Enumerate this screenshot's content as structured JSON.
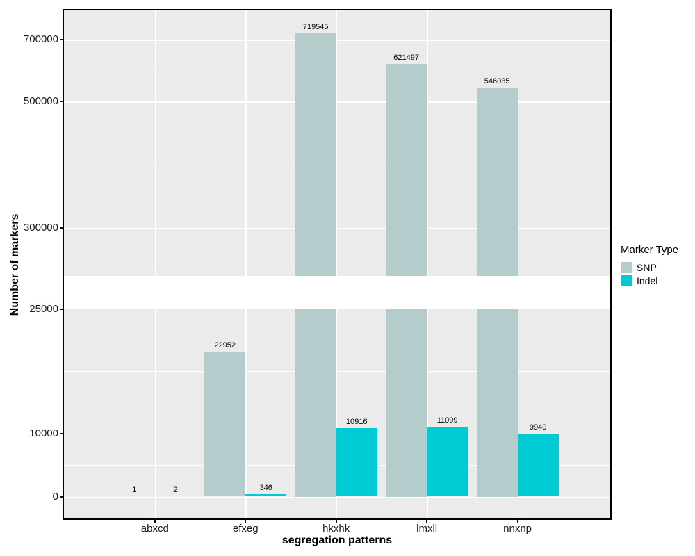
{
  "chart_data": {
    "type": "bar",
    "title": "",
    "xlabel": "segregation patterns",
    "ylabel": "Number of markers",
    "categories": [
      "abxcd",
      "efxeg",
      "hkxhk",
      "lmxll",
      "nnxnp"
    ],
    "series": [
      {
        "name": "SNP",
        "color": "#B5CCCC",
        "values": [
          1,
          22952,
          719545,
          621497,
          546035
        ]
      },
      {
        "name": "Indel",
        "color": "#00CBD2",
        "values": [
          2,
          346,
          10916,
          11099,
          9940
        ]
      }
    ],
    "bar_value_labels_shown": true,
    "y_axis": {
      "broken": true,
      "lower_segment": {
        "range": [
          0,
          25000
        ],
        "ticks": [
          {
            "value": 0,
            "label": "0"
          },
          {
            "value": 10000,
            "label": "10000"
          },
          {
            "value": 25000,
            "label": "25000"
          }
        ]
      },
      "upper_segment": {
        "range": [
          300000,
          760000
        ],
        "ticks": [
          {
            "value": 300000,
            "label": "300000"
          },
          {
            "value": 500000,
            "label": "500000"
          },
          {
            "value": 700000,
            "label": "700000"
          }
        ]
      }
    },
    "legend": {
      "title": "Marker Type",
      "position": "right",
      "entries": [
        "SNP",
        "Indel"
      ]
    },
    "style": {
      "panel_bg": "#EBEBEB",
      "gridline_color": "#FFFFFF",
      "grid": true,
      "legend_swatch_colors": [
        "#B5CCCC",
        "#00CBD2"
      ]
    }
  }
}
